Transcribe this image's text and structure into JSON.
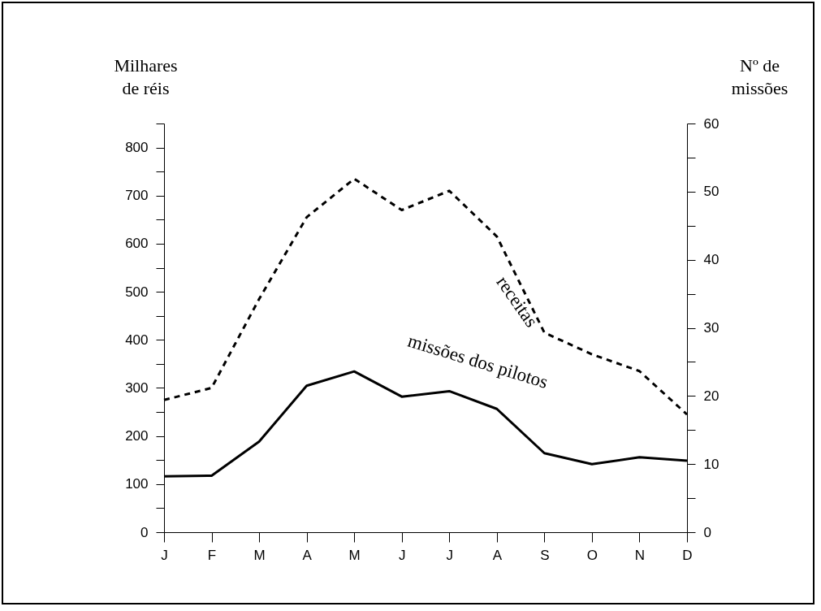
{
  "chart_data": {
    "type": "line",
    "ylabel": "Milhares de réis",
    "y2label": "Nº de missões",
    "categories": [
      "J",
      "F",
      "M",
      "A",
      "M",
      "J",
      "J",
      "A",
      "S",
      "O",
      "N",
      "D"
    ],
    "series": [
      {
        "name": "receitas",
        "color": "#000000",
        "line_style": "dashed",
        "values": [
          275,
          300,
          485,
          655,
          735,
          670,
          710,
          615,
          415,
          370,
          335,
          245
        ]
      },
      {
        "name": "missões dos pilotos",
        "color": "#000000",
        "line_style": "solid",
        "axis": "y2",
        "values": [
          8.2,
          8.3,
          13.3,
          21.5,
          23.6,
          19.9,
          20.7,
          18.1,
          11.6,
          10,
          11,
          10.5
        ]
      }
    ],
    "ylim": [
      0,
      850
    ],
    "yticks": [
      0,
      {
        "value": 50,
        "label": null
      },
      100,
      {
        "value": 150,
        "label": null
      },
      200,
      {
        "value": 250,
        "label": null
      },
      300,
      {
        "value": 350,
        "label": null
      },
      400,
      {
        "value": 450,
        "label": null
      },
      500,
      {
        "value": 550,
        "label": null
      },
      600,
      {
        "value": 650,
        "label": null
      },
      700,
      {
        "value": 750,
        "label": null
      },
      800,
      {
        "value": 850,
        "label": null
      }
    ],
    "y2lim": [
      0,
      60
    ],
    "y2ticks": [
      0,
      {
        "value": 5,
        "label": null
      },
      10,
      {
        "value": 15,
        "label": null
      },
      20,
      {
        "value": 25,
        "label": null
      },
      30,
      {
        "value": 35,
        "label": null
      },
      40,
      {
        "value": 45,
        "label": null
      },
      50,
      {
        "value": 55,
        "label": null
      },
      60
    ],
    "marker": "none"
  }
}
